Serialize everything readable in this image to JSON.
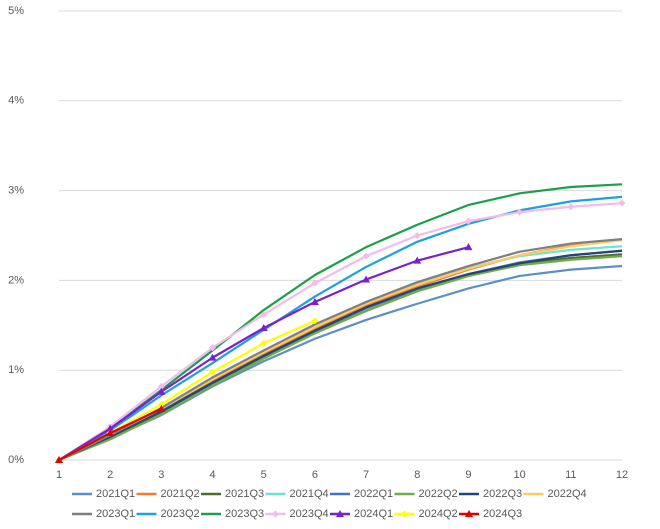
{
  "chart_data": {
    "type": "line",
    "categories": [
      "1",
      "2",
      "3",
      "4",
      "5",
      "6",
      "7",
      "8",
      "9",
      "10",
      "11",
      "12"
    ],
    "ylim": [
      0,
      5
    ],
    "yticks": [
      {
        "value": 0,
        "label": "0%"
      },
      {
        "value": 1,
        "label": "1%"
      },
      {
        "value": 2,
        "label": "2%"
      },
      {
        "value": 3,
        "label": "3%"
      },
      {
        "value": 4,
        "label": "4%"
      },
      {
        "value": 5,
        "label": "5%"
      }
    ],
    "grid": true,
    "legend": "bottom",
    "series": [
      {
        "name": "2021Q1",
        "color": "#5b8fc7",
        "values": [
          0,
          0.24,
          0.5,
          0.82,
          1.1,
          1.35,
          1.56,
          1.74,
          1.91,
          2.05,
          2.12,
          2.16
        ]
      },
      {
        "name": "2021Q2",
        "color": "#ed7d31",
        "values": [
          0,
          0.27,
          0.55,
          0.88,
          1.18,
          1.46,
          1.72,
          1.93,
          2.12,
          2.28,
          2.39,
          2.45
        ]
      },
      {
        "name": "2021Q3",
        "color": "#4e6b2f",
        "values": [
          0,
          0.24,
          0.52,
          0.84,
          1.14,
          1.42,
          1.66,
          1.88,
          2.05,
          2.18,
          2.25,
          2.29
        ]
      },
      {
        "name": "2021Q4",
        "color": "#6fe3d0",
        "values": [
          0,
          0.28,
          0.58,
          0.9,
          1.22,
          1.5,
          1.75,
          1.97,
          2.14,
          2.27,
          2.34,
          2.38
        ]
      },
      {
        "name": "2022Q1",
        "color": "#4472c4",
        "values": [
          0,
          0.27,
          0.55,
          0.86,
          1.16,
          1.44,
          1.69,
          1.9,
          2.07,
          2.2,
          2.28,
          2.33
        ]
      },
      {
        "name": "2022Q2",
        "color": "#70ad47",
        "values": [
          0,
          0.23,
          0.51,
          0.83,
          1.13,
          1.41,
          1.66,
          1.88,
          2.05,
          2.17,
          2.23,
          2.27
        ]
      },
      {
        "name": "2022Q3",
        "color": "#264478",
        "values": [
          0,
          0.26,
          0.54,
          0.86,
          1.16,
          1.44,
          1.7,
          1.91,
          2.07,
          2.19,
          2.28,
          2.33
        ]
      },
      {
        "name": "2022Q4",
        "color": "#ffc966",
        "values": [
          0,
          0.28,
          0.57,
          0.9,
          1.2,
          1.48,
          1.74,
          1.95,
          2.13,
          2.28,
          2.38,
          2.45
        ]
      },
      {
        "name": "2023Q1",
        "color": "#7f7f7f",
        "values": [
          0,
          0.28,
          0.58,
          0.92,
          1.22,
          1.51,
          1.76,
          1.98,
          2.16,
          2.32,
          2.41,
          2.46
        ]
      },
      {
        "name": "2023Q2",
        "color": "#1ea0e0",
        "values": [
          0,
          0.33,
          0.72,
          1.08,
          1.45,
          1.82,
          2.15,
          2.43,
          2.63,
          2.78,
          2.88,
          2.93
        ]
      },
      {
        "name": "2023Q3",
        "color": "#1aa04a",
        "values": [
          0,
          0.35,
          0.78,
          1.22,
          1.67,
          2.06,
          2.37,
          2.62,
          2.84,
          2.97,
          3.04,
          3.07
        ]
      },
      {
        "name": "2023Q4",
        "color": "#f2bde9",
        "marker": "diamond",
        "values": [
          0,
          0.37,
          0.82,
          1.25,
          1.62,
          1.97,
          2.27,
          2.5,
          2.66,
          2.76,
          2.82,
          2.86
        ]
      },
      {
        "name": "2024Q1",
        "color": "#7b1fd1",
        "marker": "triangle",
        "values": [
          0,
          0.35,
          0.76,
          1.14,
          1.47,
          1.76,
          2.01,
          2.22,
          2.37,
          null,
          null,
          null
        ]
      },
      {
        "name": "2024Q2",
        "color": "#ffff00",
        "marker": "diamond",
        "values": [
          0,
          0.3,
          0.62,
          0.98,
          1.3,
          1.55,
          null,
          null,
          null,
          null,
          null,
          null
        ]
      },
      {
        "name": "2024Q3",
        "color": "#e00000",
        "marker": "triangle",
        "values": [
          0,
          0.3,
          0.57,
          null,
          null,
          null,
          null,
          null,
          null,
          null,
          null,
          null
        ]
      }
    ]
  }
}
